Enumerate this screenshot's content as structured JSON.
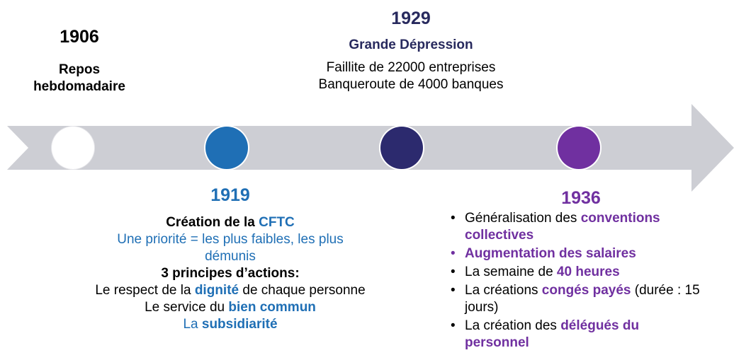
{
  "colors": {
    "arrow": "#cdced4",
    "circle_1906": "#ffffff",
    "circle_1919": "#1f6fb5",
    "circle_1929": "#2c2a6e",
    "circle_1936": "#7030a0",
    "blue_text": "#1f6fb5",
    "navy_text": "#282a5e",
    "purple_text": "#7030a0"
  },
  "e1906": {
    "year": "1906",
    "line1": "Repos",
    "line2": "hebdomadaire"
  },
  "e1929": {
    "year": "1929",
    "title": "Grande Dépression",
    "line1": "Faillite de 22000 entreprises",
    "line2": "Banqueroute de 4000 banques"
  },
  "e1919": {
    "year": "1919",
    "creation_prefix": "Création de la ",
    "creation_org": "CFTC",
    "priority_line1": "Une priorité = les plus faibles, les plus",
    "priority_line2": "démunis",
    "principles_title": "3 principes d’actions:",
    "p1_prefix": "Le respect de la ",
    "p1_bold": "dignité",
    "p1_suffix": " de chaque personne",
    "p2_prefix": "Le service du ",
    "p2_bold": "bien commun",
    "p3_prefix": "La ",
    "p3_bold": "subsidiarité"
  },
  "e1936": {
    "year": "1936",
    "bullet": "•",
    "i1_prefix": "Généralisation des ",
    "i1_bold": "conventions collectives",
    "i2_bold": "Augmentation des salaires",
    "i3_prefix": "La semaine de ",
    "i3_bold": "40 heures",
    "i4_prefix": "La créations ",
    "i4_bold": "congés payés",
    "i4_suffix": " (durée : 15 jours)",
    "i5_prefix": "La création des ",
    "i5_bold": "délégués du personnel"
  }
}
